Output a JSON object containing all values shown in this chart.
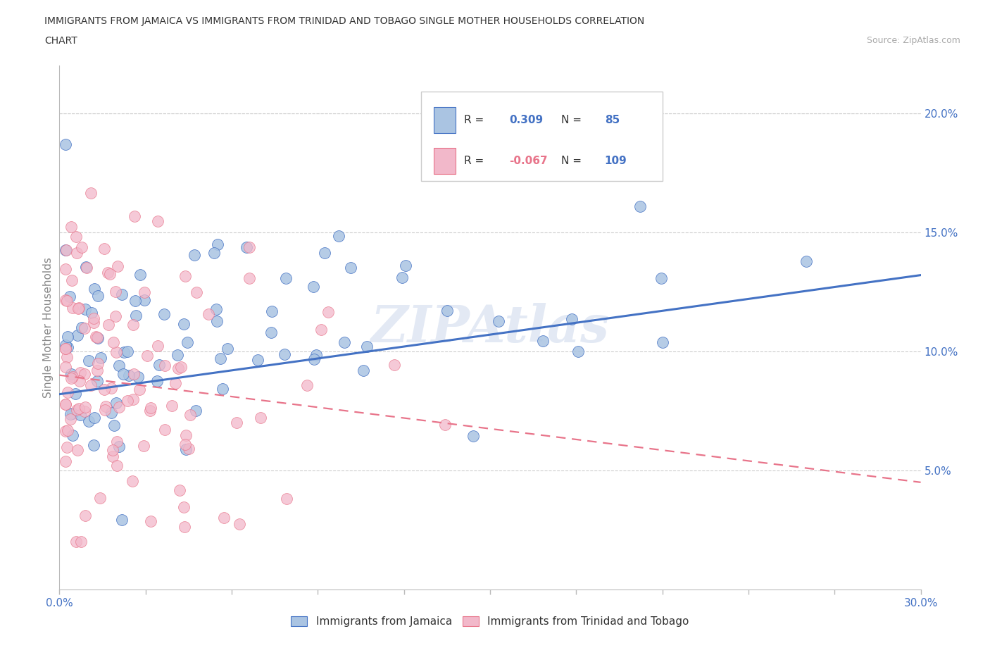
{
  "title_line1": "IMMIGRANTS FROM JAMAICA VS IMMIGRANTS FROM TRINIDAD AND TOBAGO SINGLE MOTHER HOUSEHOLDS CORRELATION",
  "title_line2": "CHART",
  "source": "Source: ZipAtlas.com",
  "ylabel": "Single Mother Households",
  "xlim": [
    0.0,
    0.3
  ],
  "ylim": [
    0.0,
    0.22
  ],
  "color_jamaica": "#aac4e2",
  "color_tt": "#f2b8ca",
  "line_color_jamaica": "#4472c4",
  "line_color_tt": "#e8748a",
  "R_jamaica": 0.309,
  "N_jamaica": 85,
  "R_tt": -0.067,
  "N_tt": 109,
  "legend_label_jamaica": "Immigrants from Jamaica",
  "legend_label_tt": "Immigrants from Trinidad and Tobago",
  "watermark": "ZIPAtlas",
  "background_color": "#ffffff",
  "grid_color": "#cccccc",
  "trendline_jamaica_x0": 0.0,
  "trendline_jamaica_y0": 0.082,
  "trendline_jamaica_x1": 0.3,
  "trendline_jamaica_y1": 0.132,
  "trendline_tt_x0": 0.0,
  "trendline_tt_y0": 0.09,
  "trendline_tt_x1": 0.3,
  "trendline_tt_y1": 0.045
}
